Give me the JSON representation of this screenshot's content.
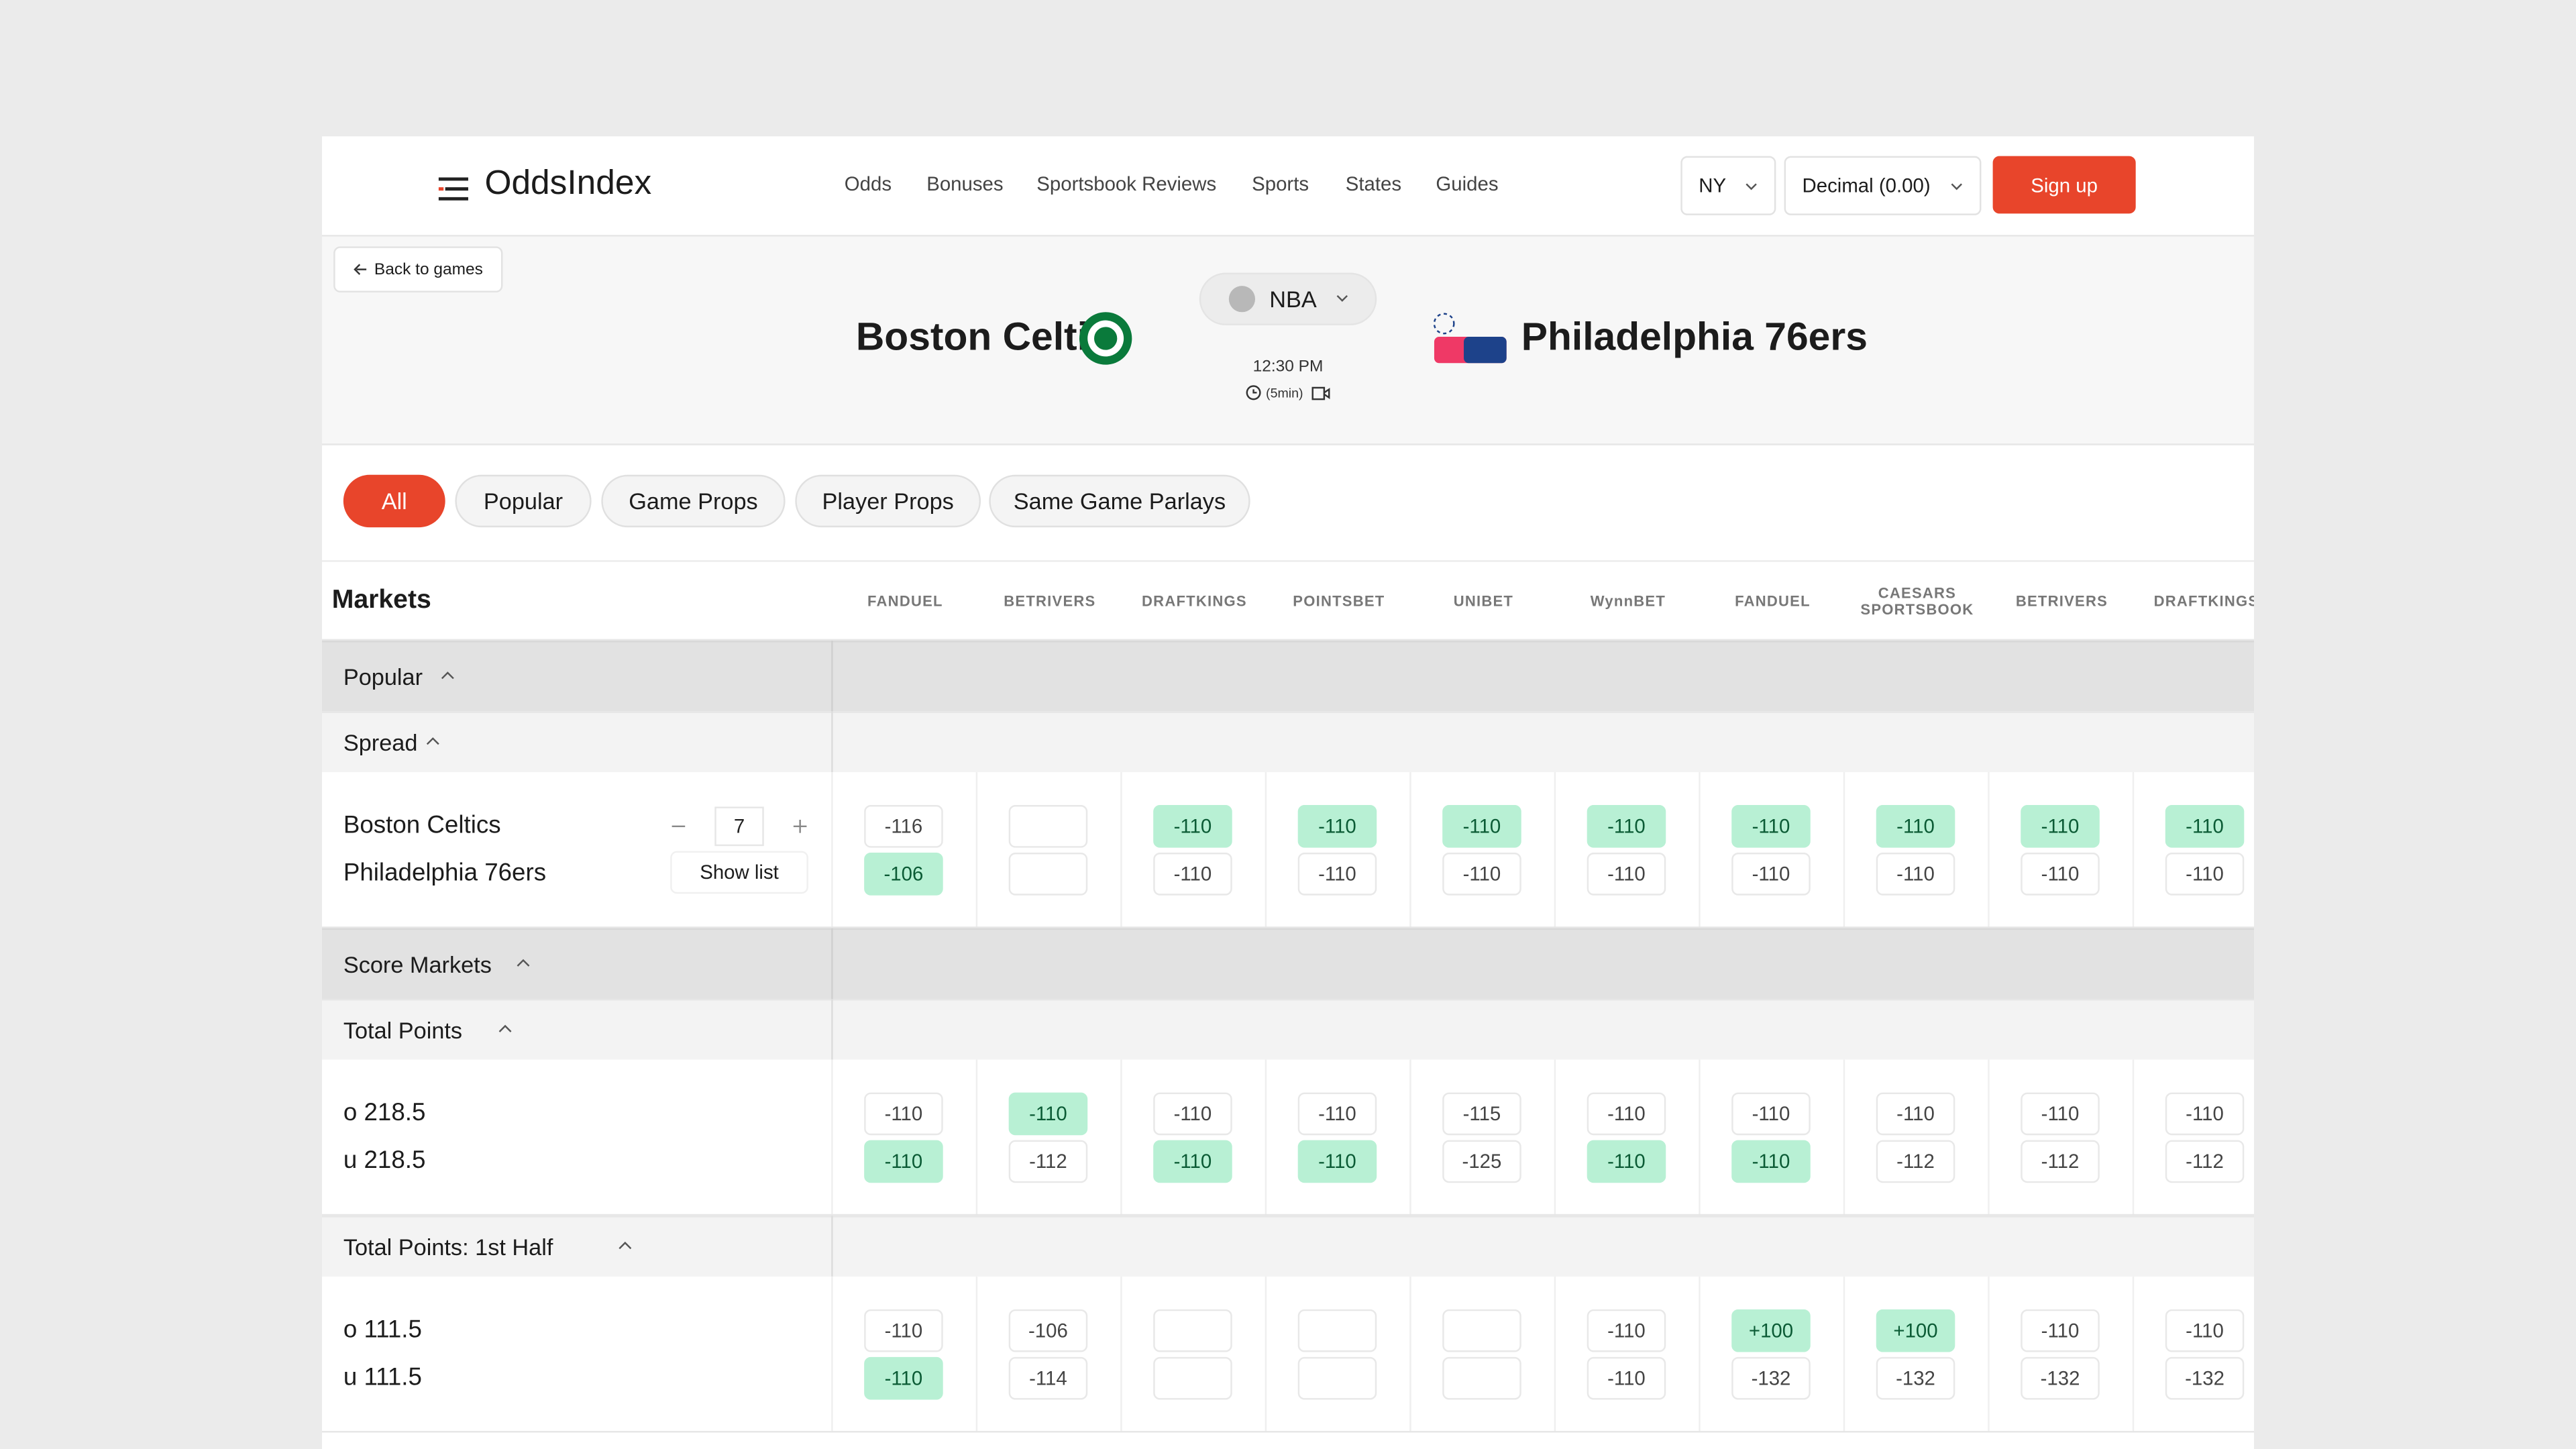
{
  "nav": {
    "logo": "OddsIndex",
    "links": [
      "Odds",
      "Bonuses",
      "Sportsbook Reviews",
      "Sports",
      "States",
      "Guides"
    ],
    "region": "NY",
    "format": "Decimal (0.00)",
    "signup": "Sign up"
  },
  "game": {
    "back": "Back to games",
    "home": "Boston Celtics",
    "away": "Philadelphia 76ers",
    "league": "NBA",
    "time": "12:30 PM",
    "duration": "(5min)"
  },
  "tabs": [
    "All",
    "Popular",
    "Game Props",
    "Player Props",
    "Same Game Parlays"
  ],
  "table": {
    "header": "Markets",
    "books": [
      "FANDUEL",
      "BETRIVERS",
      "DRAFTKINGS",
      "POINTSBET",
      "UNIBET",
      "WynnBET",
      "FANDUEL",
      "CAESARS SPORTSBOOK",
      "BETRIVERS",
      "DRAFTKINGS"
    ],
    "groups": [
      {
        "title": "Popular",
        "markets": [
          {
            "title": "Spread",
            "line": 7,
            "show_list": "Show list",
            "rows": [
              {
                "label": "Boston Celtics",
                "odds": [
                  {
                    "odds": "-116",
                    "best": false
                  },
                  null,
                  {
                    "odds": "-110",
                    "best": true
                  },
                  {
                    "odds": "-110",
                    "best": true
                  },
                  {
                    "odds": "-110",
                    "best": true
                  },
                  {
                    "odds": "-110",
                    "best": true
                  },
                  {
                    "odds": "-110",
                    "best": true
                  },
                  {
                    "odds": "-110",
                    "best": true
                  },
                  {
                    "odds": "-110",
                    "best": true
                  },
                  {
                    "odds": "-110",
                    "best": true
                  }
                ]
              },
              {
                "label": "Philadelphia 76ers",
                "odds": [
                  {
                    "odds": "-106",
                    "best": true
                  },
                  null,
                  {
                    "odds": "-110",
                    "best": false
                  },
                  {
                    "odds": "-110",
                    "best": false
                  },
                  {
                    "odds": "-110",
                    "best": false
                  },
                  {
                    "odds": "-110",
                    "best": false
                  },
                  {
                    "odds": "-110",
                    "best": false
                  },
                  {
                    "odds": "-110",
                    "best": false
                  },
                  {
                    "odds": "-110",
                    "best": false
                  },
                  {
                    "odds": "-110",
                    "best": false
                  }
                ]
              }
            ]
          }
        ]
      },
      {
        "title": "Score Markets",
        "markets": [
          {
            "title": "Total Points",
            "rows": [
              {
                "label": "o 218.5",
                "odds": [
                  {
                    "odds": "-110",
                    "best": false
                  },
                  {
                    "odds": "-110",
                    "best": true
                  },
                  {
                    "odds": "-110",
                    "best": false
                  },
                  {
                    "odds": "-110",
                    "best": false
                  },
                  {
                    "odds": "-115",
                    "best": false
                  },
                  {
                    "odds": "-110",
                    "best": false
                  },
                  {
                    "odds": "-110",
                    "best": false
                  },
                  {
                    "odds": "-110",
                    "best": false
                  },
                  {
                    "odds": "-110",
                    "best": false
                  },
                  {
                    "odds": "-110",
                    "best": false
                  }
                ]
              },
              {
                "label": "u 218.5",
                "odds": [
                  {
                    "odds": "-110",
                    "best": true
                  },
                  {
                    "odds": "-112",
                    "best": false
                  },
                  {
                    "odds": "-110",
                    "best": true
                  },
                  {
                    "odds": "-110",
                    "best": true
                  },
                  {
                    "odds": "-125",
                    "best": false
                  },
                  {
                    "odds": "-110",
                    "best": true
                  },
                  {
                    "odds": "-110",
                    "best": true
                  },
                  {
                    "odds": "-112",
                    "best": false
                  },
                  {
                    "odds": "-112",
                    "best": false
                  },
                  {
                    "odds": "-112",
                    "best": false
                  }
                ]
              }
            ]
          },
          {
            "title": "Total Points: 1st Half",
            "rows": [
              {
                "label": "o 111.5",
                "odds": [
                  {
                    "odds": "-110",
                    "best": false
                  },
                  {
                    "odds": "-106",
                    "best": false
                  },
                  null,
                  null,
                  null,
                  {
                    "odds": "-110",
                    "best": false
                  },
                  {
                    "odds": "+100",
                    "best": true
                  },
                  {
                    "odds": "+100",
                    "best": true
                  },
                  {
                    "odds": "-110",
                    "best": false
                  },
                  {
                    "odds": "-110",
                    "best": false
                  }
                ]
              },
              {
                "label": "u 111.5",
                "odds": [
                  {
                    "odds": "-110",
                    "best": true
                  },
                  {
                    "odds": "-114",
                    "best": false
                  },
                  null,
                  null,
                  null,
                  {
                    "odds": "-110",
                    "best": false
                  },
                  {
                    "odds": "-132",
                    "best": false
                  },
                  {
                    "odds": "-132",
                    "best": false
                  },
                  {
                    "odds": "-132",
                    "best": false
                  },
                  {
                    "odds": "-132",
                    "best": false
                  }
                ]
              }
            ]
          }
        ]
      }
    ]
  }
}
